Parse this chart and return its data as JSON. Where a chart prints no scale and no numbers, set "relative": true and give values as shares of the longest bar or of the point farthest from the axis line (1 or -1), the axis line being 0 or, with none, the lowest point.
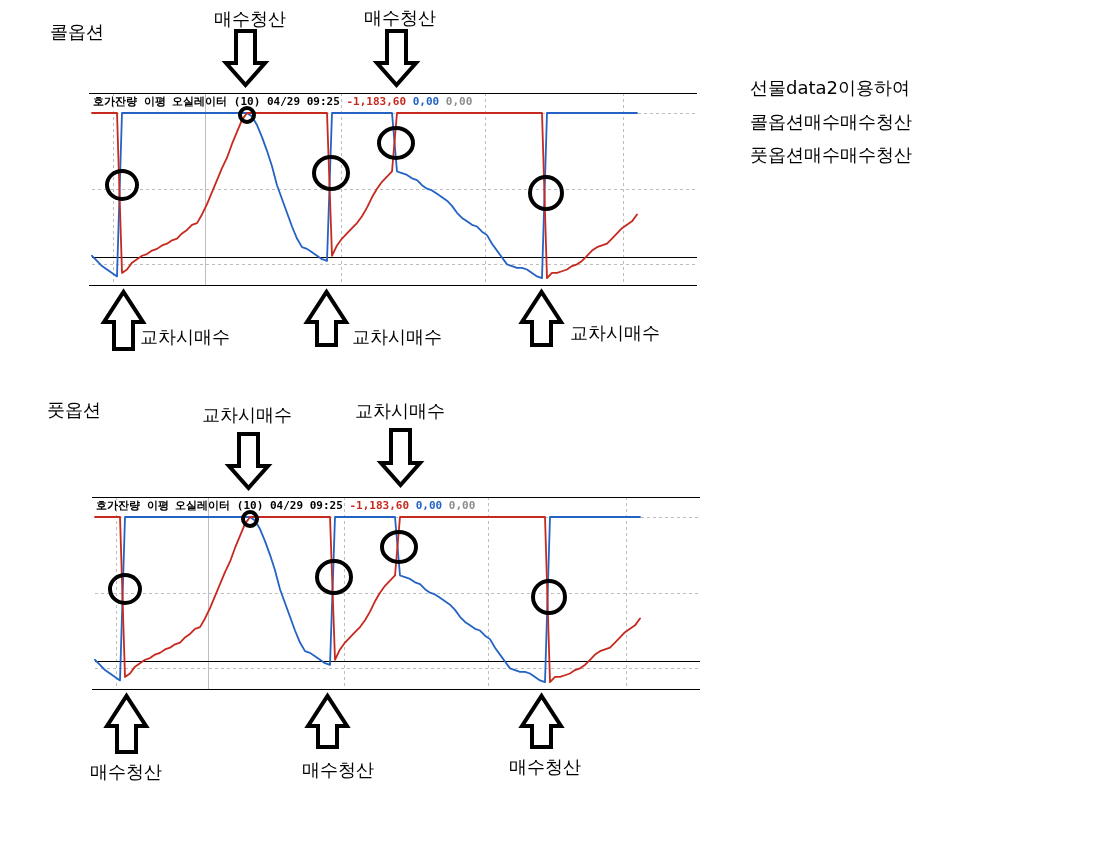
{
  "chart_data": [
    {
      "type": "line",
      "title": "콜옵션",
      "subtitle": "호가잔량 이평 오실레이터 (10) 04/29 09:25 -1,183,60 0,00 0,00",
      "annotations": [
        "매수청산",
        "매수청산",
        "교차시매수",
        "교차시매수",
        "교차시매수"
      ],
      "relative": true,
      "grid": true,
      "tick_labels": false,
      "categories": [
        null,
        null,
        null,
        null,
        null,
        null,
        null,
        null,
        null,
        null,
        null,
        null,
        null,
        null,
        null,
        null,
        null,
        null,
        null,
        null,
        null,
        null,
        null,
        null,
        null,
        null,
        null,
        null,
        null,
        null,
        null,
        null,
        null,
        null,
        null,
        null,
        null,
        null,
        null,
        null,
        null,
        null,
        null,
        null,
        null,
        null,
        null,
        null,
        null,
        null,
        null,
        null,
        null,
        null,
        null,
        null,
        null,
        null,
        null,
        null,
        null,
        null,
        null,
        null,
        null,
        null,
        null,
        null,
        null,
        null,
        null,
        null,
        null,
        null,
        null,
        null,
        null,
        null,
        null,
        null,
        null,
        null,
        null,
        null,
        null,
        null,
        null,
        null,
        null,
        null,
        null,
        null,
        null,
        null,
        null,
        null,
        null,
        null,
        null,
        null,
        null,
        null,
        null,
        null,
        null,
        null,
        null,
        null,
        null,
        null,
        null,
        null,
        null,
        null,
        null,
        null,
        null,
        null,
        null,
        null,
        null,
        null
      ],
      "ref_lines": [
        {
          "axis": "y",
          "value": 0.16,
          "color": "#000000"
        }
      ],
      "series": [
        {
          "color": "#c62a1f",
          "values": [
            1,
            1,
            1,
            1,
            1,
            1,
            0.07,
            0.09,
            0.13,
            0.15,
            0.17,
            0.18,
            0.2,
            0.21,
            0.23,
            0.24,
            0.26,
            0.27,
            0.3,
            0.32,
            0.35,
            0.36,
            0.41,
            0.47,
            0.54,
            0.61,
            0.68,
            0.74,
            0.82,
            0.89,
            0.96,
            1,
            1,
            1,
            1,
            1,
            1,
            1,
            1,
            1,
            1,
            1,
            1,
            1,
            1,
            1,
            1,
            1,
            0.17,
            0.23,
            0.27,
            0.3,
            0.33,
            0.36,
            0.4,
            0.45,
            0.51,
            0.56,
            0.6,
            0.63,
            0.66,
            1,
            1,
            1,
            1,
            1,
            1,
            1,
            1,
            1,
            1,
            1,
            1,
            1,
            1,
            1,
            1,
            1,
            1,
            1,
            1,
            1,
            1,
            1,
            1,
            1,
            1,
            1,
            1,
            1,
            1,
            0.04,
            0.07,
            0.07,
            0.08,
            0.09,
            0.11,
            0.12,
            0.14,
            0.17,
            0.2,
            0.22,
            0.23,
            0.24,
            0.27,
            0.3,
            0.33,
            0.35,
            0.37,
            0.41,
            null,
            null,
            null,
            null,
            null,
            null,
            null,
            null,
            null,
            null,
            null,
            null
          ]
        },
        {
          "color": "#2463c4",
          "values": [
            0.17,
            0.14,
            0.11,
            0.09,
            0.07,
            0.05,
            1,
            1,
            1,
            1,
            1,
            1,
            1,
            1,
            1,
            1,
            1,
            1,
            1,
            1,
            1,
            1,
            1,
            1,
            1,
            1,
            1,
            1,
            1,
            1,
            1,
            1,
            0.98,
            0.93,
            0.86,
            0.78,
            0.69,
            0.58,
            0.5,
            0.42,
            0.34,
            0.27,
            0.22,
            0.21,
            0.19,
            0.17,
            0.15,
            0.14,
            1,
            1,
            1,
            1,
            1,
            1,
            1,
            1,
            1,
            1,
            1,
            1,
            1,
            0.66,
            0.65,
            0.64,
            0.62,
            0.61,
            0.58,
            0.56,
            0.55,
            0.53,
            0.51,
            0.49,
            0.46,
            0.42,
            0.39,
            0.37,
            0.35,
            0.34,
            0.31,
            0.29,
            0.24,
            0.2,
            0.16,
            0.12,
            0.11,
            0.1,
            0.1,
            0.09,
            0.07,
            0.05,
            0.04,
            1,
            1,
            1,
            1,
            1,
            1,
            1,
            1,
            1,
            1,
            1,
            1,
            1,
            1,
            1,
            1,
            1,
            1,
            1,
            null,
            null,
            null,
            null,
            null,
            null,
            null,
            null,
            null,
            null,
            null,
            null
          ]
        }
      ]
    },
    {
      "type": "other",
      "annotations": [
        "선물data2이용하여",
        "콜옵션매수매수청산",
        "풋옵션매수매수청산"
      ]
    },
    {
      "type": "line",
      "title": "풋옵션",
      "subtitle": "호가잔량 이평 오실레이터 (10) 04/29 09:25 -1,183,60 0,00 0,00",
      "annotations": [
        "교차시매수",
        "교차시매수",
        "매수청산",
        "매수청산",
        "매수청산"
      ],
      "relative": true,
      "grid": true,
      "tick_labels": false,
      "categories": [
        null,
        null,
        null,
        null,
        null,
        null,
        null,
        null,
        null,
        null,
        null,
        null,
        null,
        null,
        null,
        null,
        null,
        null,
        null,
        null,
        null,
        null,
        null,
        null,
        null,
        null,
        null,
        null,
        null,
        null,
        null,
        null,
        null,
        null,
        null,
        null,
        null,
        null,
        null,
        null,
        null,
        null,
        null,
        null,
        null,
        null,
        null,
        null,
        null,
        null,
        null,
        null,
        null,
        null,
        null,
        null,
        null,
        null,
        null,
        null,
        null,
        null,
        null,
        null,
        null,
        null,
        null,
        null,
        null,
        null,
        null,
        null,
        null,
        null,
        null,
        null,
        null,
        null,
        null,
        null,
        null,
        null,
        null,
        null,
        null,
        null,
        null,
        null,
        null,
        null,
        null,
        null,
        null,
        null,
        null,
        null,
        null,
        null,
        null,
        null,
        null,
        null,
        null,
        null,
        null,
        null,
        null,
        null,
        null,
        null,
        null,
        null,
        null,
        null,
        null,
        null,
        null,
        null,
        null,
        null,
        null,
        null
      ],
      "ref_lines": [
        {
          "axis": "y",
          "value": 0.16,
          "color": "#000000"
        }
      ],
      "series": [
        {
          "color": "#c62a1f",
          "values": [
            1,
            1,
            1,
            1,
            1,
            1,
            0.07,
            0.09,
            0.13,
            0.15,
            0.17,
            0.18,
            0.2,
            0.21,
            0.23,
            0.24,
            0.26,
            0.27,
            0.3,
            0.32,
            0.35,
            0.36,
            0.41,
            0.47,
            0.54,
            0.61,
            0.68,
            0.74,
            0.82,
            0.89,
            0.96,
            1,
            1,
            1,
            1,
            1,
            1,
            1,
            1,
            1,
            1,
            1,
            1,
            1,
            1,
            1,
            1,
            1,
            0.17,
            0.23,
            0.27,
            0.3,
            0.33,
            0.36,
            0.4,
            0.45,
            0.51,
            0.56,
            0.6,
            0.63,
            0.66,
            1,
            1,
            1,
            1,
            1,
            1,
            1,
            1,
            1,
            1,
            1,
            1,
            1,
            1,
            1,
            1,
            1,
            1,
            1,
            1,
            1,
            1,
            1,
            1,
            1,
            1,
            1,
            1,
            1,
            1,
            0.04,
            0.07,
            0.07,
            0.08,
            0.09,
            0.11,
            0.12,
            0.14,
            0.17,
            0.2,
            0.22,
            0.23,
            0.24,
            0.27,
            0.3,
            0.33,
            0.35,
            0.37,
            0.41,
            null,
            null,
            null,
            null,
            null,
            null,
            null,
            null,
            null,
            null,
            null,
            null
          ]
        },
        {
          "color": "#2463c4",
          "values": [
            0.17,
            0.14,
            0.11,
            0.09,
            0.07,
            0.05,
            1,
            1,
            1,
            1,
            1,
            1,
            1,
            1,
            1,
            1,
            1,
            1,
            1,
            1,
            1,
            1,
            1,
            1,
            1,
            1,
            1,
            1,
            1,
            1,
            1,
            1,
            0.98,
            0.93,
            0.86,
            0.78,
            0.69,
            0.58,
            0.5,
            0.42,
            0.34,
            0.27,
            0.22,
            0.21,
            0.19,
            0.17,
            0.15,
            0.14,
            1,
            1,
            1,
            1,
            1,
            1,
            1,
            1,
            1,
            1,
            1,
            1,
            1,
            0.66,
            0.65,
            0.64,
            0.62,
            0.61,
            0.58,
            0.56,
            0.55,
            0.53,
            0.51,
            0.49,
            0.46,
            0.42,
            0.39,
            0.37,
            0.35,
            0.34,
            0.31,
            0.29,
            0.24,
            0.2,
            0.16,
            0.12,
            0.11,
            0.1,
            0.1,
            0.09,
            0.07,
            0.05,
            0.04,
            1,
            1,
            1,
            1,
            1,
            1,
            1,
            1,
            1,
            1,
            1,
            1,
            1,
            1,
            1,
            1,
            1,
            1,
            1,
            null,
            null,
            null,
            null,
            null,
            null,
            null,
            null,
            null,
            null,
            null,
            null
          ]
        }
      ]
    }
  ]
}
